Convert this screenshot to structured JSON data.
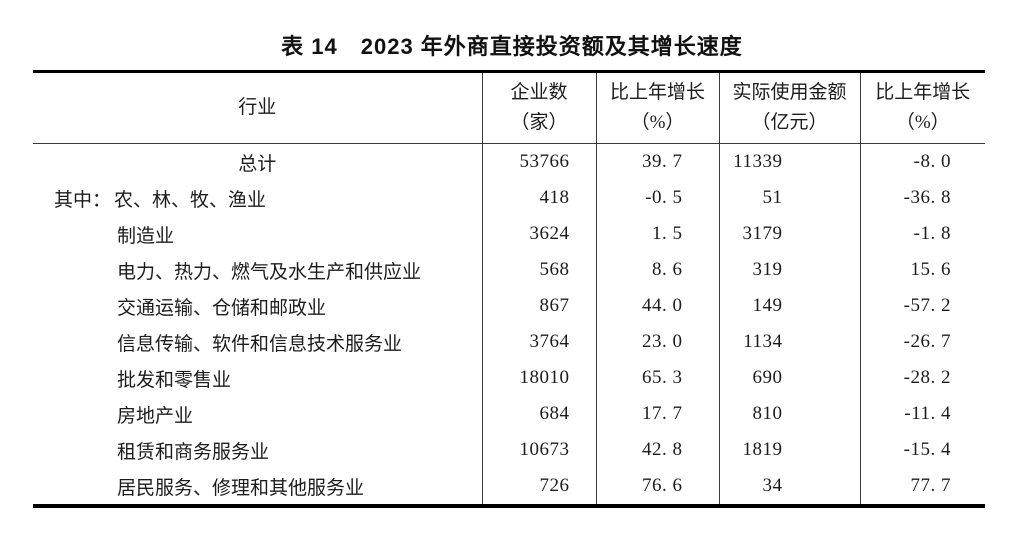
{
  "title": "表 14　2023 年外商直接投资额及其增长速度",
  "table": {
    "columns": [
      {
        "label": "行业",
        "sub": ""
      },
      {
        "label": "企业数",
        "sub": "（家）"
      },
      {
        "label": "比上年增长",
        "sub": "（%）"
      },
      {
        "label": "实际使用金额",
        "sub": "（亿元）"
      },
      {
        "label": "比上年增长",
        "sub": "（%）"
      }
    ],
    "rows": [
      {
        "style": "total",
        "prefix": "",
        "label": "总计",
        "enterprises": "53766",
        "enterprises_growth": "39. 7",
        "amount": "11339",
        "amount_growth": "-8. 0"
      },
      {
        "style": "prefixed",
        "prefix": "其中：",
        "label": "农、林、牧、渔业",
        "enterprises": "418",
        "enterprises_growth": "-0. 5",
        "amount": "51",
        "amount_growth": "-36. 8"
      },
      {
        "style": "normal",
        "prefix": "",
        "label": "制造业",
        "enterprises": "3624",
        "enterprises_growth": "1. 5",
        "amount": "3179",
        "amount_growth": "-1. 8"
      },
      {
        "style": "normal",
        "prefix": "",
        "label": "电力、热力、燃气及水生产和供应业",
        "enterprises": "568",
        "enterprises_growth": "8. 6",
        "amount": "319",
        "amount_growth": "15. 6"
      },
      {
        "style": "normal",
        "prefix": "",
        "label": "交通运输、仓储和邮政业",
        "enterprises": "867",
        "enterprises_growth": "44. 0",
        "amount": "149",
        "amount_growth": "-57. 2"
      },
      {
        "style": "normal",
        "prefix": "",
        "label": "信息传输、软件和信息技术服务业",
        "enterprises": "3764",
        "enterprises_growth": "23. 0",
        "amount": "1134",
        "amount_growth": "-26. 7"
      },
      {
        "style": "normal",
        "prefix": "",
        "label": "批发和零售业",
        "enterprises": "18010",
        "enterprises_growth": "65. 3",
        "amount": "690",
        "amount_growth": "-28. 2"
      },
      {
        "style": "normal",
        "prefix": "",
        "label": "房地产业",
        "enterprises": "684",
        "enterprises_growth": "17. 7",
        "amount": "810",
        "amount_growth": "-11. 4"
      },
      {
        "style": "normal",
        "prefix": "",
        "label": "租赁和商务服务业",
        "enterprises": "10673",
        "enterprises_growth": "42. 8",
        "amount": "1819",
        "amount_growth": "-15. 4"
      },
      {
        "style": "normal",
        "prefix": "",
        "label": "居民服务、修理和其他服务业",
        "enterprises": "726",
        "enterprises_growth": "76. 6",
        "amount": "34",
        "amount_growth": "77. 7"
      }
    ]
  }
}
